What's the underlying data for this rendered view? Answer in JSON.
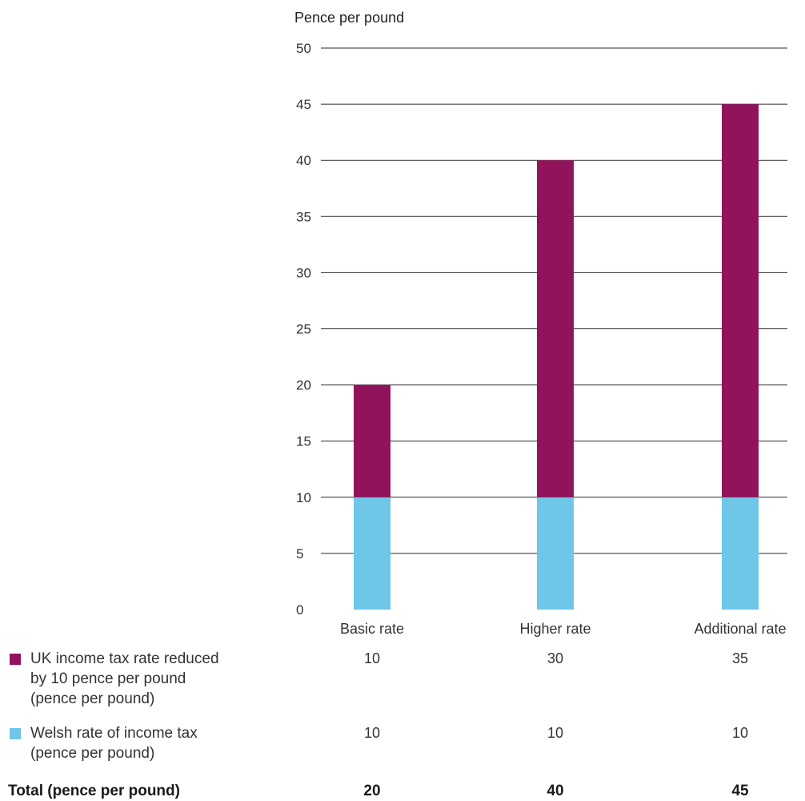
{
  "chart_data": {
    "type": "bar",
    "stacked": true,
    "ylabel": "Pence per pound",
    "ylim": [
      0,
      50
    ],
    "yticks": [
      0,
      5,
      10,
      15,
      20,
      25,
      30,
      35,
      40,
      45,
      50
    ],
    "grid": true,
    "categories": [
      "Basic rate",
      "Higher rate",
      "Additional rate"
    ],
    "series": [
      {
        "name": "Welsh rate of income tax\n(pence per pound)",
        "values": [
          10,
          10,
          10
        ],
        "color": "#6ec6e8"
      },
      {
        "name": "UK income tax rate reduced\nby 10 pence per pound\n(pence per pound)",
        "values": [
          10,
          30,
          35
        ],
        "color": "#91135c"
      }
    ],
    "totals": {
      "label": "Total (pence per pound)",
      "values": [
        20,
        40,
        45
      ]
    },
    "legend_placement": "bottom-left table"
  }
}
